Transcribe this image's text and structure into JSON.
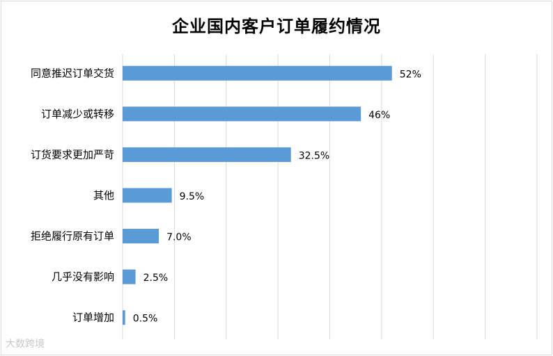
{
  "chart_data": {
    "type": "bar",
    "orientation": "horizontal",
    "title": "企业国内客户订单履约情况",
    "categories": [
      "同意推迟订单交货",
      "订单减少或转移",
      "订货要求更加严苛",
      "其他",
      "拒绝履行原有订单",
      "几乎没有影响",
      "订单增加"
    ],
    "values": [
      52,
      46,
      32.5,
      9.5,
      7.0,
      2.5,
      0.5
    ],
    "value_labels": [
      "52%",
      "46%",
      "32.5%",
      "9.5%",
      "7.0%",
      "2.5%",
      "0.5%"
    ],
    "xlim": [
      0,
      80
    ],
    "grid": true,
    "bar_color": "#5b9bd5"
  },
  "watermark": "大数跨境"
}
